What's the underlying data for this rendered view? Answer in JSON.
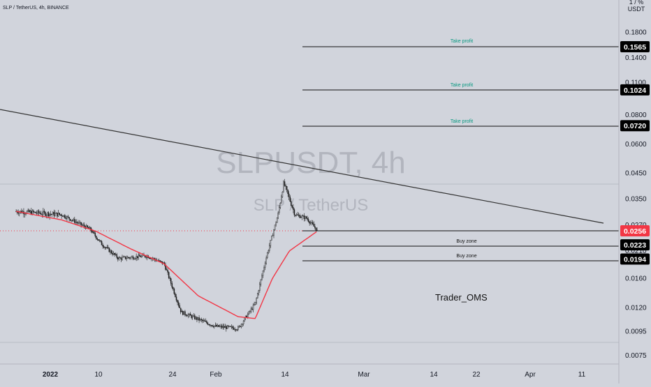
{
  "header": {
    "symbol_line": "SLP / TetherUS, 4h, BINANCE"
  },
  "watermark": {
    "ticker": "SLPUSDT, 4h",
    "pair": "SLP / TetherUS"
  },
  "axis": {
    "currency": "USDT",
    "top_cut_label": "1 / %"
  },
  "author": "Trader_OMS",
  "colors": {
    "background": "#d1d4dc",
    "candle": "#1a1a1a",
    "moving_average": "#f23645",
    "take_profit_text": "#089981",
    "current_price_bg": "#f23645",
    "trendline": "#333333"
  },
  "chart_data": {
    "type": "candlestick",
    "y_scale": "log",
    "y_ticks": [
      "0.1800",
      "0.1400",
      "0.1100",
      "0.0800",
      "0.0600",
      "0.0450",
      "0.0350",
      "0.0270",
      "0.0210",
      "0.0160",
      "0.0120",
      "0.0095",
      "0.0075"
    ],
    "x_ticks": [
      "2022",
      "10",
      "24",
      "Feb",
      "14",
      "Mar",
      "14",
      "22",
      "Apr",
      "11"
    ],
    "price_badges": [
      {
        "value": "0.1565",
        "kind": "take-profit"
      },
      {
        "value": "0.1024",
        "kind": "take-profit"
      },
      {
        "value": "0.0720",
        "kind": "take-profit"
      },
      {
        "value": "0.0256",
        "kind": "current"
      },
      {
        "value": "0.0223",
        "kind": "buy-zone"
      },
      {
        "value": "0.0194",
        "kind": "buy-zone"
      }
    ],
    "levels": [
      {
        "label": "Take profit",
        "price": 0.1565
      },
      {
        "label": "Take profit",
        "price": 0.1024
      },
      {
        "label": "Take profit",
        "price": 0.072
      },
      {
        "label": "Buy zone",
        "price": 0.0223
      },
      {
        "label": "Buy zone",
        "price": 0.0194
      }
    ],
    "current_price": 0.0256,
    "approx_path": [
      {
        "date": "2021-12-26",
        "price": 0.031
      },
      {
        "date": "2022-01-03",
        "price": 0.03
      },
      {
        "date": "2022-01-08",
        "price": 0.026
      },
      {
        "date": "2022-01-10",
        "price": 0.0225
      },
      {
        "date": "2022-01-13",
        "price": 0.0195
      },
      {
        "date": "2022-01-18",
        "price": 0.02
      },
      {
        "date": "2022-01-21",
        "price": 0.0185
      },
      {
        "date": "2022-01-24",
        "price": 0.0115
      },
      {
        "date": "2022-01-30",
        "price": 0.01
      },
      {
        "date": "2022-02-03",
        "price": 0.0098
      },
      {
        "date": "2022-02-06",
        "price": 0.0125
      },
      {
        "date": "2022-02-08",
        "price": 0.02
      },
      {
        "date": "2022-02-10",
        "price": 0.03
      },
      {
        "date": "2022-02-11",
        "price": 0.041
      },
      {
        "date": "2022-02-13",
        "price": 0.03
      },
      {
        "date": "2022-02-15",
        "price": 0.029
      },
      {
        "date": "2022-02-17",
        "price": 0.0256
      }
    ],
    "moving_average_path": [
      {
        "date": "2021-12-26",
        "price": 0.031
      },
      {
        "date": "2022-01-03",
        "price": 0.0285
      },
      {
        "date": "2022-01-09",
        "price": 0.0255
      },
      {
        "date": "2022-01-15",
        "price": 0.0215
      },
      {
        "date": "2022-01-21",
        "price": 0.0185
      },
      {
        "date": "2022-01-27",
        "price": 0.0135
      },
      {
        "date": "2022-02-03",
        "price": 0.011
      },
      {
        "date": "2022-02-06",
        "price": 0.0108
      },
      {
        "date": "2022-02-09",
        "price": 0.016
      },
      {
        "date": "2022-02-12",
        "price": 0.021
      },
      {
        "date": "2022-02-17",
        "price": 0.0256
      }
    ]
  }
}
